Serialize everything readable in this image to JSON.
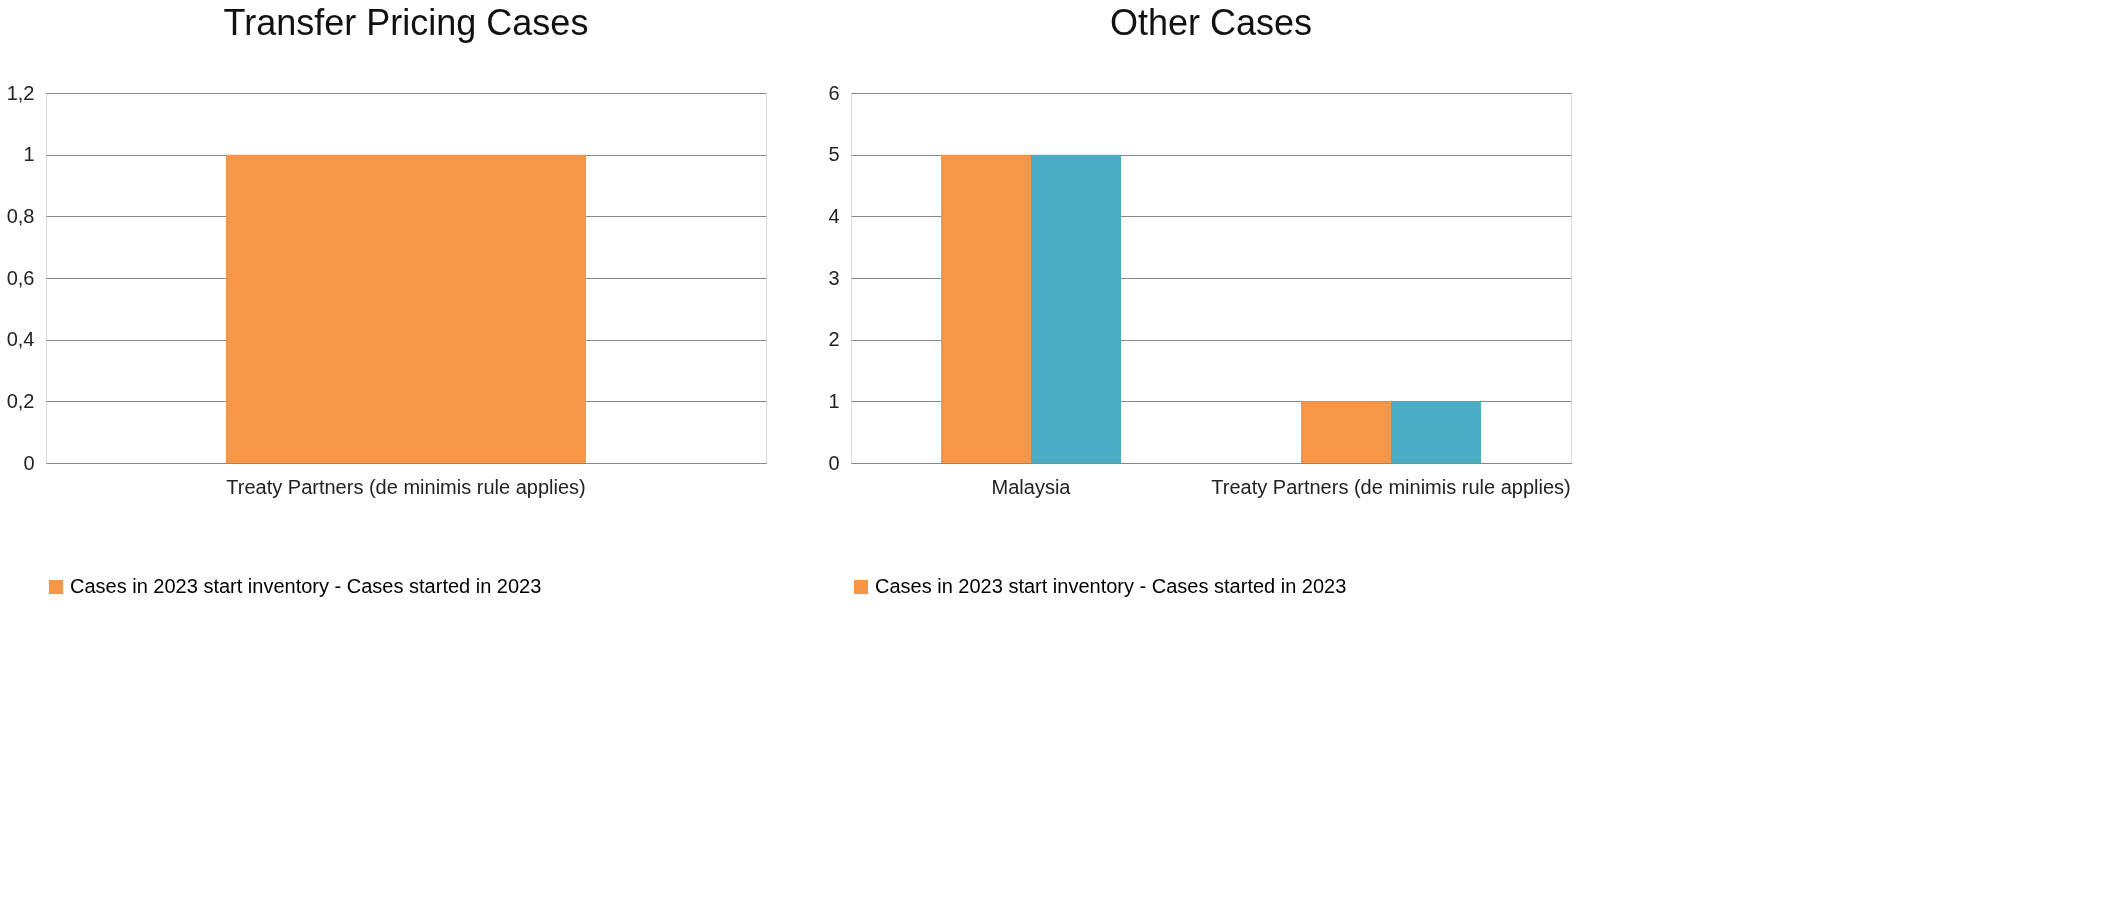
{
  "chart_data": [
    {
      "type": "bar",
      "title": "Transfer Pricing Cases",
      "categories": [
        "Treaty Partners (de minimis rule applies)"
      ],
      "series": [
        {
          "name": "Cases in 2023 start inventory - Cases started in 2023",
          "color": "#f79646",
          "values": [
            1
          ]
        }
      ],
      "ylim": [
        0,
        1.2
      ],
      "yticks": [
        0,
        {
          "value": 0.2,
          "label": "0,2"
        },
        {
          "value": 0.4,
          "label": "0,4"
        },
        {
          "value": 0.6,
          "label": "0,6"
        },
        {
          "value": 0.8,
          "label": "0,8"
        },
        1,
        {
          "value": 1.2,
          "label": "1,2"
        }
      ],
      "grid": "y",
      "legend": "bottom"
    },
    {
      "type": "bar",
      "title": "Other Cases",
      "categories": [
        "Malaysia",
        "Treaty Partners (de minimis rule applies)"
      ],
      "series": [
        {
          "name": "Cases in 2023 start inventory - Cases started in 2023",
          "color": "#f79646",
          "values": [
            5,
            1
          ]
        },
        {
          "color": "#4bacc6",
          "values": [
            5,
            1
          ]
        }
      ],
      "ylim": [
        0,
        6
      ],
      "yticks": [
        0,
        1,
        2,
        3,
        4,
        5,
        6
      ],
      "grid": "y",
      "legend": "bottom"
    }
  ]
}
